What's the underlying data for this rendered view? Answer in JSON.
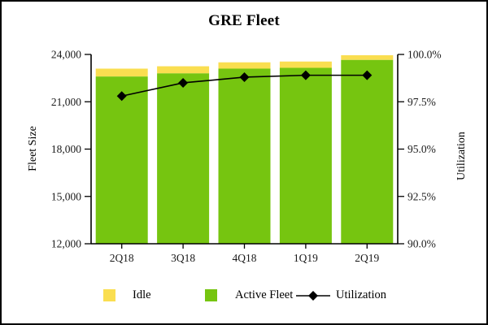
{
  "chart_data": {
    "type": "bar",
    "subtype": "stacked-bars-with-line-overlay",
    "title": "GRE Fleet",
    "categories": [
      "2Q18",
      "3Q18",
      "4Q18",
      "1Q19",
      "2Q19"
    ],
    "series": [
      {
        "name": "Active Fleet",
        "color": "#76C510",
        "values": [
          22600,
          22800,
          23100,
          23150,
          23650
        ]
      },
      {
        "name": "Idle",
        "color": "#FADE50",
        "values": [
          500,
          450,
          400,
          400,
          300
        ]
      }
    ],
    "line_series": {
      "name": "Utilization",
      "axis": "right",
      "color": "#000000",
      "marker": "diamond",
      "values": [
        97.8,
        98.5,
        98.8,
        98.9,
        98.9
      ]
    },
    "left_axis": {
      "title": "Fleet Size",
      "min": 12000,
      "max": 24000,
      "ticks": [
        {
          "value": 12000,
          "label": "12,000"
        },
        {
          "value": 15000,
          "label": "15,000"
        },
        {
          "value": 18000,
          "label": "18,000"
        },
        {
          "value": 21000,
          "label": "21,000"
        },
        {
          "value": 24000,
          "label": "24,000"
        }
      ]
    },
    "right_axis": {
      "title": "Utilization",
      "min": 90,
      "max": 100,
      "ticks": [
        {
          "value": 90,
          "label": "90.0%"
        },
        {
          "value": 92.5,
          "label": "92.5%"
        },
        {
          "value": 95,
          "label": "95.0%"
        },
        {
          "value": 97.5,
          "label": "97.5%"
        },
        {
          "value": 100,
          "label": "100.0%"
        }
      ]
    },
    "grid": "off",
    "legend_position": "bottom"
  },
  "legend": {
    "items": [
      {
        "label": "Idle",
        "swatch_color": "#FADE50",
        "icon": "square"
      },
      {
        "label": "Active Fleet",
        "swatch_color": "#76C510",
        "icon": "square"
      },
      {
        "label": "Utilization",
        "swatch_color": "#000000",
        "icon": "line-diamond"
      }
    ]
  },
  "colors": {
    "background": "#FFFFFF",
    "border": "#000000",
    "axis": "#000000",
    "active_green": "#76C510",
    "idle_yellow": "#FADE50",
    "line_black": "#000000"
  }
}
